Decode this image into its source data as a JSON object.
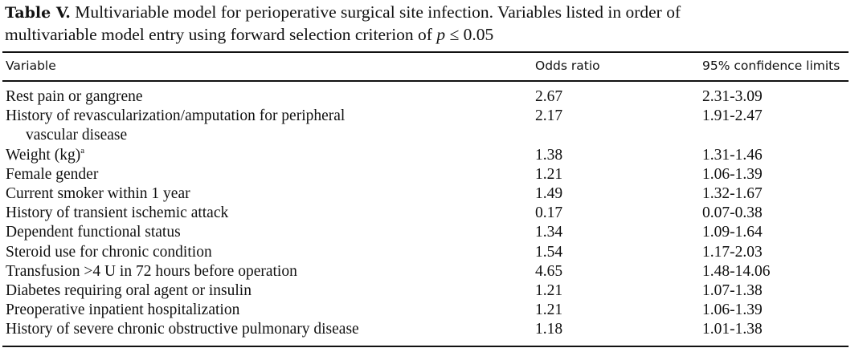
{
  "caption": {
    "label": "Table V.",
    "text_part1": "Multivariable model for perioperative surgical site infection. Variables listed in order of",
    "text_part2": "multivariable model entry using forward selection criterion of",
    "p_symbol": "p",
    "p_rest": "≤ 0.05"
  },
  "header": {
    "variable": "Variable",
    "odds_ratio": "Odds ratio",
    "ci": "95% confidence limits"
  },
  "rows": [
    {
      "variable": "Rest pain or gangrene",
      "odds_ratio": "2.67",
      "ci": "2.31-3.09"
    },
    {
      "variable": "History of revascularization/amputation for peripheral",
      "variable_cont": "vascular disease",
      "odds_ratio": "2.17",
      "ci": "1.91-2.47"
    },
    {
      "variable": "Weight (kg)",
      "footnote": "a",
      "odds_ratio": "1.38",
      "ci": "1.31-1.46"
    },
    {
      "variable": "Female gender",
      "odds_ratio": "1.21",
      "ci": "1.06-1.39"
    },
    {
      "variable": "Current smoker within 1 year",
      "odds_ratio": "1.49",
      "ci": "1.32-1.67"
    },
    {
      "variable": "History of transient ischemic attack",
      "odds_ratio": "0.17",
      "ci": "0.07-0.38"
    },
    {
      "variable": "Dependent functional status",
      "odds_ratio": "1.34",
      "ci": "1.09-1.64"
    },
    {
      "variable": "Steroid use for chronic condition",
      "odds_ratio": "1.54",
      "ci": "1.17-2.03"
    },
    {
      "variable": "Transfusion >4 U in 72 hours before operation",
      "odds_ratio": "4.65",
      "ci": "1.48-14.06"
    },
    {
      "variable": "Diabetes requiring oral agent or insulin",
      "odds_ratio": "1.21",
      "ci": "1.07-1.38"
    },
    {
      "variable": "Preoperative inpatient hospitalization",
      "odds_ratio": "1.21",
      "ci": "1.06-1.39"
    },
    {
      "variable": "History of severe chronic obstructive pulmonary disease",
      "odds_ratio": "1.18",
      "ci": "1.01-1.38"
    }
  ]
}
